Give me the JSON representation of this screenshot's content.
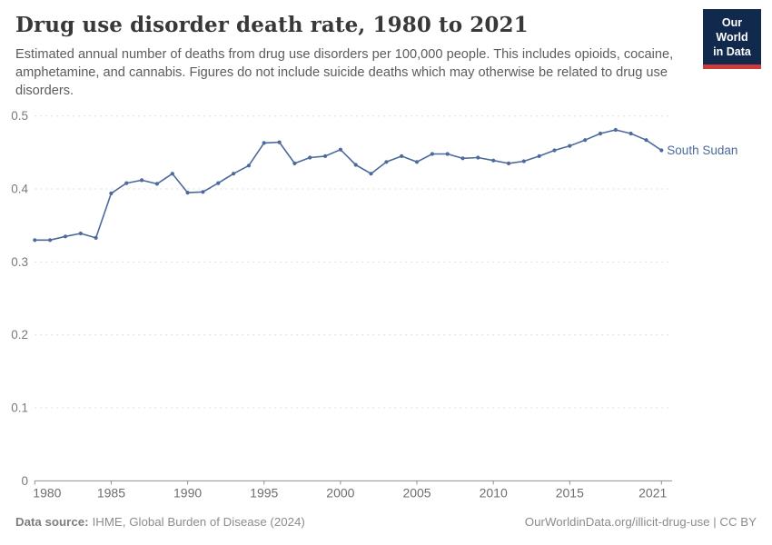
{
  "header": {
    "title": "Drug use disorder death rate, 1980 to 2021",
    "subtitle": "Estimated annual number of deaths from drug use disorders per 100,000 people. This includes opioids, cocaine, amphetamine, and cannabis. Figures do not include suicide deaths which may otherwise be related to drug use disorders.",
    "logo": {
      "line1": "Our World",
      "line2": "in Data",
      "bg_color": "#12294e",
      "stripe_color": "#cc3a3a"
    }
  },
  "chart_data": {
    "type": "line",
    "title": "Drug use disorder death rate, 1980 to 2021",
    "xlabel": "",
    "ylabel": "",
    "xlim": [
      1980,
      2021
    ],
    "ylim": [
      0,
      0.5
    ],
    "grid": "horizontal-dashed",
    "legend_position": "end-of-line-label",
    "x_ticks": [
      1980,
      1985,
      1990,
      1995,
      2000,
      2005,
      2010,
      2015,
      2021
    ],
    "y_ticks": [
      {
        "value": 0,
        "label": "0"
      },
      {
        "value": 0.1,
        "label": "0.1"
      },
      {
        "value": 0.2,
        "label": "0.2"
      },
      {
        "value": 0.3,
        "label": "0.3"
      },
      {
        "value": 0.4,
        "label": "0.4"
      },
      {
        "value": 0.5,
        "label": "0.5"
      }
    ],
    "series": [
      {
        "name": "South Sudan",
        "color": "#4c6a9c",
        "years": [
          1980,
          1981,
          1982,
          1983,
          1984,
          1985,
          1986,
          1987,
          1988,
          1989,
          1990,
          1991,
          1992,
          1993,
          1994,
          1995,
          1996,
          1997,
          1998,
          1999,
          2000,
          2001,
          2002,
          2003,
          2004,
          2005,
          2006,
          2007,
          2008,
          2009,
          2010,
          2011,
          2012,
          2013,
          2014,
          2015,
          2016,
          2017,
          2018,
          2019,
          2020,
          2021
        ],
        "values": [
          0.33,
          0.33,
          0.335,
          0.339,
          0.333,
          0.394,
          0.408,
          0.412,
          0.407,
          0.421,
          0.395,
          0.396,
          0.408,
          0.421,
          0.432,
          0.463,
          0.464,
          0.435,
          0.443,
          0.445,
          0.454,
          0.433,
          0.421,
          0.437,
          0.445,
          0.437,
          0.448,
          0.448,
          0.442,
          0.443,
          0.439,
          0.435,
          0.438,
          0.445,
          0.453,
          0.459,
          0.467,
          0.476,
          0.481,
          0.476,
          0.467,
          0.453
        ]
      }
    ]
  },
  "footer": {
    "datasource_label": "Data source:",
    "datasource_text": "IHME, Global Burden of Disease (2024)",
    "attribution": "OurWorldinData.org/illicit-drug-use | CC BY"
  }
}
